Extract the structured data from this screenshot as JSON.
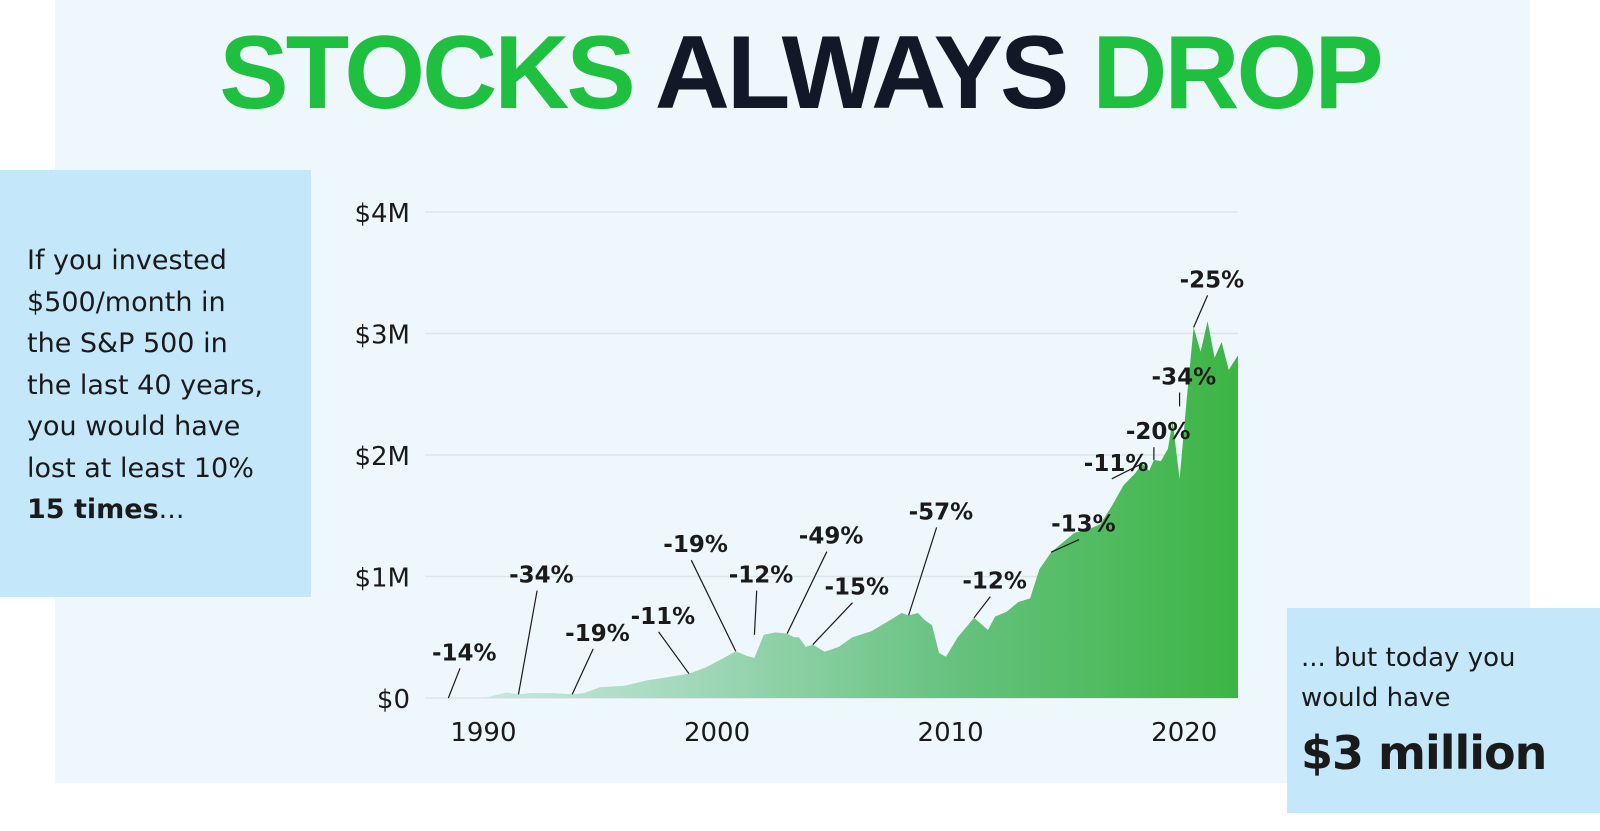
{
  "title": {
    "part1": "STOCKS",
    "part2": "ALWAYS",
    "part3": "DROP"
  },
  "colors": {
    "green": "#1fc040",
    "dark": "#111827",
    "panel": "#c4e7fa",
    "background": "#eef7fc"
  },
  "left_note": {
    "lines": [
      "If you invested",
      "$500/month in",
      "the S&P 500 in",
      "the last 40 years,",
      "you would have",
      "lost at least 10%"
    ],
    "bold": "15 times",
    "tail": "..."
  },
  "right_note": {
    "lines": [
      "... but today you",
      "would have"
    ],
    "amount": "$3 million"
  },
  "chart_data": {
    "type": "area",
    "xlim": [
      1987.5,
      2022.3
    ],
    "ylim": [
      0,
      4000000
    ],
    "y_ticks": [
      {
        "value": 0,
        "label": "$0"
      },
      {
        "value": 1000000,
        "label": "$1M"
      },
      {
        "value": 2000000,
        "label": "$2M"
      },
      {
        "value": 3000000,
        "label": "$3M"
      },
      {
        "value": 4000000,
        "label": "$4M"
      }
    ],
    "x_ticks": [
      {
        "value": 1990,
        "label": "1990"
      },
      {
        "value": 2000,
        "label": "2000"
      },
      {
        "value": 2010,
        "label": "2010"
      },
      {
        "value": 2020,
        "label": "2020"
      }
    ],
    "grid": true,
    "x": [
      1987.5,
      1990.0,
      1991.0,
      1991.5,
      1992.0,
      1993.0,
      1993.8,
      1994.3,
      1995.0,
      1996.0,
      1997.0,
      1998.0,
      1998.8,
      1999.5,
      2000.2,
      2000.8,
      2001.3,
      2001.6,
      2002.0,
      2002.5,
      2003.0,
      2003.3,
      2003.5,
      2003.8,
      2004.1,
      2004.6,
      2005.2,
      2005.8,
      2006.6,
      2007.4,
      2007.9,
      2008.2,
      2008.6,
      2008.9,
      2009.2,
      2009.5,
      2009.8,
      2010.3,
      2010.7,
      2011.0,
      2011.3,
      2011.6,
      2011.9,
      2012.4,
      2012.9,
      2013.4,
      2013.8,
      2014.3,
      2014.8,
      2015.3,
      2015.8,
      2016.4,
      2016.9,
      2017.4,
      2017.9,
      2018.2,
      2018.5,
      2018.7,
      2019.0,
      2019.3,
      2019.5,
      2019.8,
      2020.1,
      2020.4,
      2020.7,
      2021.0,
      2021.3,
      2021.6,
      2021.9,
      2022.3
    ],
    "y": [
      0,
      0,
      45000,
      30000,
      40000,
      40000,
      30000,
      40000,
      90000,
      100000,
      145000,
      175000,
      200000,
      250000,
      320000,
      385000,
      345000,
      330000,
      520000,
      540000,
      530000,
      500000,
      500000,
      420000,
      440000,
      380000,
      420000,
      500000,
      550000,
      640000,
      700000,
      680000,
      700000,
      640000,
      600000,
      370000,
      340000,
      500000,
      590000,
      660000,
      610000,
      560000,
      670000,
      710000,
      790000,
      820000,
      1060000,
      1200000,
      1280000,
      1360000,
      1380000,
      1430000,
      1580000,
      1750000,
      1850000,
      1930000,
      1870000,
      1960000,
      1950000,
      2050000,
      2280000,
      1800000,
      2450000,
      3050000,
      2850000,
      3100000,
      2800000,
      2930000,
      2700000,
      2820000
    ],
    "drawdowns": [
      {
        "label": "-14%",
        "x": 1988.5,
        "y": 0,
        "label_x": 1987.8,
        "label_y": 310000
      },
      {
        "label": "-34%",
        "x": 1991.5,
        "y": 30000,
        "label_x": 1991.1,
        "label_y": 950000
      },
      {
        "label": "-19%",
        "x": 1993.8,
        "y": 30000,
        "label_x": 1993.5,
        "label_y": 470000
      },
      {
        "label": "-11%",
        "x": 1998.8,
        "y": 200000,
        "label_x": 1996.3,
        "label_y": 610000
      },
      {
        "label": "-19%",
        "x": 2000.8,
        "y": 385000,
        "label_x": 1997.7,
        "label_y": 1200000
      },
      {
        "label": "-12%",
        "x": 2001.6,
        "y": 520000,
        "label_x": 2000.5,
        "label_y": 950000
      },
      {
        "label": "-49%",
        "x": 2003.0,
        "y": 530000,
        "label_x": 2003.5,
        "label_y": 1270000
      },
      {
        "label": "-15%",
        "x": 2004.1,
        "y": 440000,
        "label_x": 2004.6,
        "label_y": 850000
      },
      {
        "label": "-57%",
        "x": 2008.2,
        "y": 680000,
        "label_x": 2008.2,
        "label_y": 1470000
      },
      {
        "label": "-12%",
        "x": 2011.0,
        "y": 660000,
        "label_x": 2010.5,
        "label_y": 900000
      },
      {
        "label": "-13%",
        "x": 2014.3,
        "y": 1200000,
        "label_x": 2014.3,
        "label_y": 1370000
      },
      {
        "label": "-11%",
        "x": 2018.2,
        "y": 1930000,
        "label_x": 2015.7,
        "label_y": 1870000
      },
      {
        "label": "-20%",
        "x": 2018.7,
        "y": 1960000,
        "label_x": 2017.5,
        "label_y": 2130000
      },
      {
        "label": "-34%",
        "x": 2019.8,
        "y": 2400000,
        "label_x": 2018.6,
        "label_y": 2580000
      },
      {
        "label": "-25%",
        "x": 2020.4,
        "y": 3050000,
        "label_x": 2019.8,
        "label_y": 3380000
      }
    ]
  }
}
